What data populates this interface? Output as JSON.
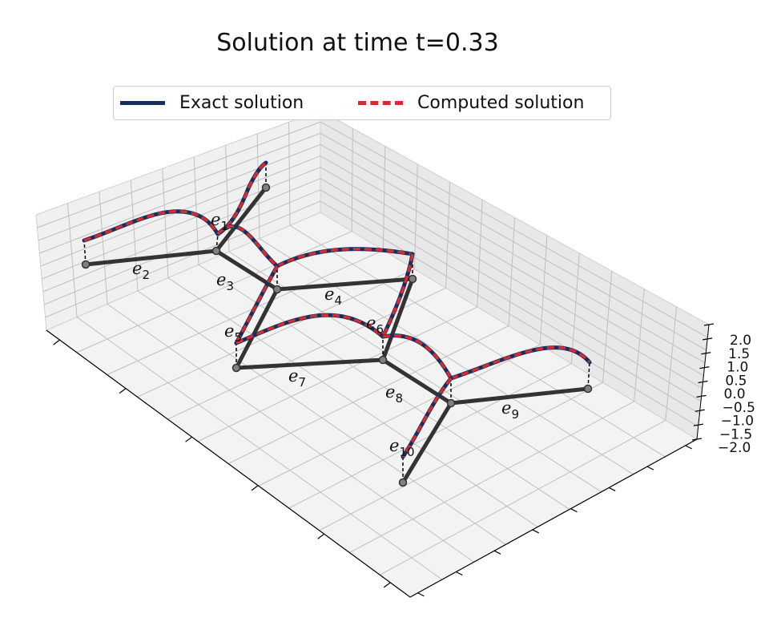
{
  "chart_data": {
    "type": "line",
    "title": "Solution at time t=0.33",
    "zlim": [
      -2.0,
      2.0
    ],
    "z_ticks": [
      "2.0",
      "1.5",
      "1.0",
      "0.5",
      "0.0",
      "−0.5",
      "−1.0",
      "−1.5",
      "−2.0"
    ],
    "grid": true,
    "legend_position": "top-center",
    "series": [
      {
        "name": "Exact solution",
        "color": "#15305e",
        "style": "solid"
      },
      {
        "name": "Computed solution",
        "color": "#d62b2f",
        "style": "dashed"
      }
    ],
    "edges": [
      {
        "label": "e1",
        "sub": "1"
      },
      {
        "label": "e2",
        "sub": "2"
      },
      {
        "label": "e3",
        "sub": "3"
      },
      {
        "label": "e4",
        "sub": "4"
      },
      {
        "label": "e5",
        "sub": "5"
      },
      {
        "label": "e6",
        "sub": "6"
      },
      {
        "label": "e7",
        "sub": "7"
      },
      {
        "label": "e8",
        "sub": "8"
      },
      {
        "label": "e9",
        "sub": "9"
      },
      {
        "label": "e10",
        "sub": "10"
      }
    ]
  },
  "colors": {
    "edge": "#333333",
    "node": "#808080"
  }
}
